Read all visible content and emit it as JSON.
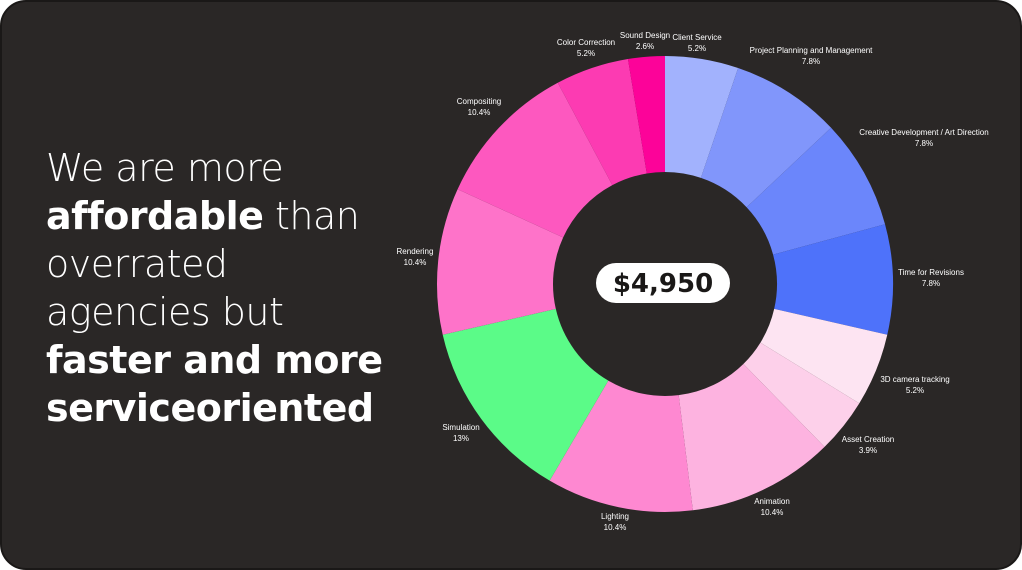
{
  "headline": {
    "line1": "We are more",
    "line2_bold": "affordable",
    "line2_rest": " than",
    "line3": "overrated",
    "line4": "agencies but",
    "line5": "faster and more",
    "line6": "serviceoriented"
  },
  "chart_data": {
    "type": "pie",
    "donut": true,
    "center_label": "$4,950",
    "slices": [
      {
        "label": "Client Service",
        "value_label": "5.2%",
        "value": 5.2,
        "color": "#a2b2fd"
      },
      {
        "label": "Project Planning and Management",
        "value_label": "7.8%",
        "value": 7.8,
        "color": "#8196fb"
      },
      {
        "label": "Creative Development / Art Direction",
        "value_label": "7.8%",
        "value": 7.8,
        "color": "#6b86fb"
      },
      {
        "label": "Time for Revisions",
        "value_label": "7.8%",
        "value": 7.8,
        "color": "#4e72fa"
      },
      {
        "label": "3D camera tracking",
        "value_label": "5.2%",
        "value": 5.2,
        "color": "#fde4f2"
      },
      {
        "label": "Asset Creation",
        "value_label": "3.9%",
        "value": 3.9,
        "color": "#fdd0ea"
      },
      {
        "label": "Animation",
        "value_label": "10.4%",
        "value": 10.4,
        "color": "#fdb3e0"
      },
      {
        "label": "Lighting",
        "value_label": "10.4%",
        "value": 10.4,
        "color": "#fe88d1"
      },
      {
        "label": "Simulation",
        "value_label": "13%",
        "value": 13,
        "color": "#5bfb88"
      },
      {
        "label": "Rendering",
        "value_label": "10.4%",
        "value": 10.4,
        "color": "#fe73c9"
      },
      {
        "label": "Compositing",
        "value_label": "10.4%",
        "value": 10.4,
        "color": "#fd58bf"
      },
      {
        "label": "Color Correction",
        "value_label": "5.2%",
        "value": 5.2,
        "color": "#fc3bb2"
      },
      {
        "label": "Sound Design",
        "value_label": "2.6%",
        "value": 2.6,
        "color": "#fc0399"
      }
    ]
  }
}
